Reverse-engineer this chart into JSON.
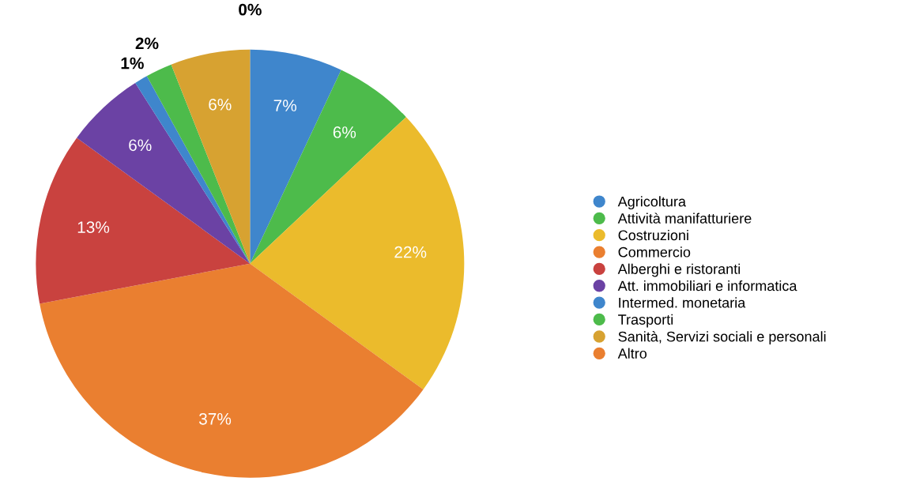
{
  "chart_data": {
    "type": "pie",
    "categories": [
      "Agricoltura",
      "Attività manifatturiere",
      "Costruzioni",
      "Commercio",
      "Alberghi e ristoranti",
      "Att. immobiliari e informatica",
      "Intermed. monetaria",
      "Trasporti",
      "Sanità, Servizi sociali e personali",
      "Altro"
    ],
    "values": [
      7,
      6,
      22,
      37,
      13,
      6,
      1,
      2,
      6,
      0
    ],
    "value_labels": [
      "7%",
      "6%",
      "22%",
      "37%",
      "13%",
      "6%",
      "1%",
      "2%",
      "6%",
      "0%"
    ],
    "colors": [
      "#3f86cc",
      "#4dbb4b",
      "#ebbb2c",
      "#ea7f30",
      "#c9423f",
      "#6b42a4",
      "#3f86cc",
      "#4dbb4b",
      "#d7a231",
      "#ea7f30"
    ],
    "legend": "right"
  }
}
